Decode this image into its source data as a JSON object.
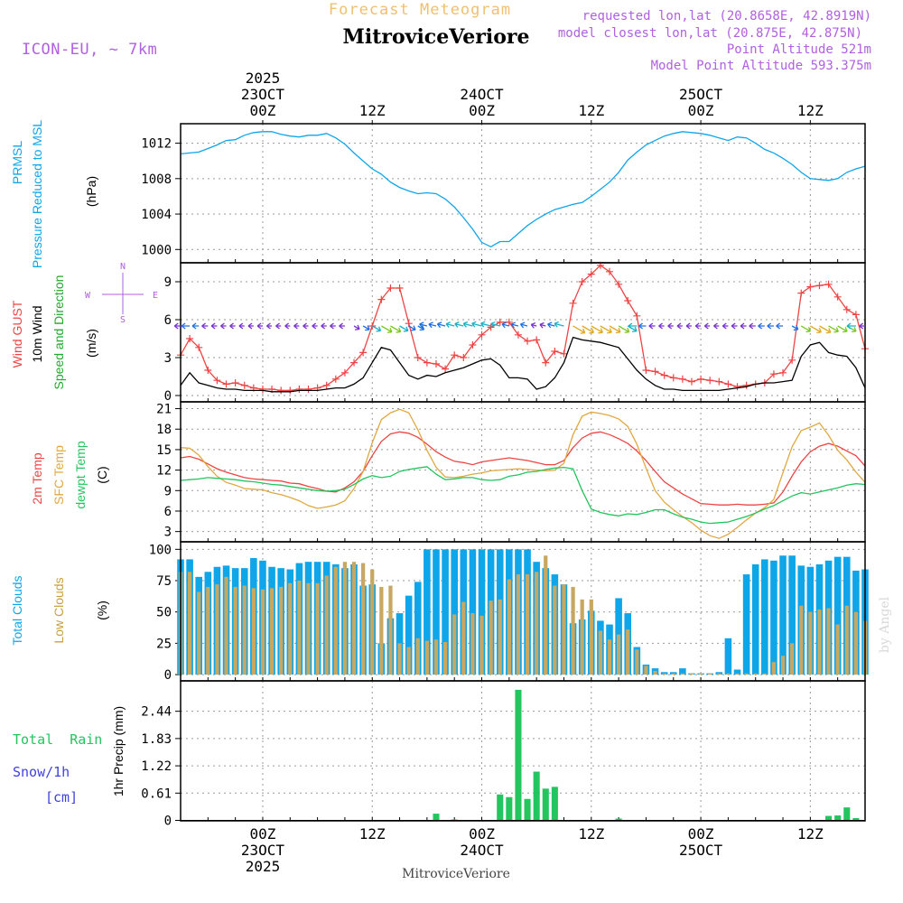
{
  "header": {
    "title_top": "Forecast Meteogram",
    "location": "MitroviceVeriore",
    "model": "ICON-EU, ~ 7km",
    "requested": "requested lon,lat (20.8658E, 42.8919N)",
    "closest": "model closest lon,lat (20.875E, 42.875N)",
    "point_altitude": "Point Altitude 521m",
    "model_altitude": "Model Point Altitude 593.375m"
  },
  "time_axis": {
    "top_labels": [
      {
        "t": 9,
        "lines": [
          "2025",
          "23OCT",
          "00Z"
        ]
      },
      {
        "t": 21,
        "lines": [
          "12Z"
        ]
      },
      {
        "t": 33,
        "lines": [
          "24OCT",
          "00Z"
        ]
      },
      {
        "t": 45,
        "lines": [
          "12Z"
        ]
      },
      {
        "t": 57,
        "lines": [
          "25OCT",
          "00Z"
        ]
      },
      {
        "t": 69,
        "lines": [
          "12Z"
        ]
      }
    ],
    "bottom_labels": [
      {
        "t": 9,
        "lines": [
          "00Z",
          "23OCT",
          "2025"
        ]
      },
      {
        "t": 21,
        "lines": [
          "12Z"
        ]
      },
      {
        "t": 33,
        "lines": [
          "00Z",
          "24OCT"
        ]
      },
      {
        "t": 45,
        "lines": [
          "12Z"
        ]
      },
      {
        "t": 57,
        "lines": [
          "00Z",
          "25OCT"
        ]
      },
      {
        "t": 69,
        "lines": [
          "12Z"
        ]
      }
    ],
    "footer": "MitroviceVeriore",
    "credit": "by Angel"
  },
  "chart_data": [
    {
      "type": "line",
      "panel": "pressure",
      "ylabel_lines": [
        "PRMSL",
        "Pressure Reduced to MSL"
      ],
      "unit": "(hPa)",
      "ylim": [
        998.5,
        1014.2
      ],
      "yticks": [
        "1000",
        "1004",
        "1008",
        "1012"
      ],
      "x_hours": [
        0,
        1,
        2,
        3,
        4,
        5,
        6,
        7,
        8,
        9,
        10,
        11,
        12,
        13,
        14,
        15,
        16,
        17,
        18,
        19,
        20,
        21,
        22,
        23,
        24,
        25,
        26,
        27,
        28,
        29,
        30,
        31,
        32,
        33,
        34,
        35,
        36,
        37,
        38,
        39,
        40,
        41,
        42,
        43,
        44,
        45,
        46,
        47,
        48,
        49,
        50,
        51,
        52,
        53,
        54,
        55,
        56,
        57,
        58,
        59,
        60,
        61,
        62,
        63,
        64,
        65,
        66,
        67,
        68,
        69,
        70,
        71,
        72,
        73,
        74,
        75
      ],
      "series": [
        {
          "name": "PRMSL",
          "color": "#0ea5e9",
          "values": [
            1010.8,
            1010.9,
            1011.0,
            1011.4,
            1011.8,
            1012.3,
            1012.4,
            1012.9,
            1013.2,
            1013.3,
            1013.3,
            1013.0,
            1012.8,
            1012.7,
            1012.9,
            1012.9,
            1013.1,
            1012.6,
            1011.9,
            1010.9,
            1010.0,
            1009.1,
            1008.5,
            1007.6,
            1007.0,
            1006.6,
            1006.3,
            1006.4,
            1006.3,
            1005.7,
            1004.8,
            1003.6,
            1002.3,
            1000.8,
            1000.3,
            1000.9,
            1000.9,
            1001.8,
            1002.7,
            1003.4,
            1004.0,
            1004.5,
            1004.8,
            1005.1,
            1005.3,
            1006.0,
            1006.8,
            1007.6,
            1008.7,
            1010.1,
            1011.0,
            1011.8,
            1012.3,
            1012.8,
            1013.1,
            1013.3,
            1013.2,
            1013.1,
            1012.9,
            1012.6,
            1012.3,
            1012.7,
            1012.6,
            1012.0,
            1011.3,
            1010.9,
            1010.3,
            1009.6,
            1008.7,
            1008.0,
            1007.9,
            1007.8,
            1008.0,
            1008.7,
            1009.1,
            1009.4
          ]
        }
      ]
    },
    {
      "type": "line",
      "panel": "wind",
      "ylabel_lines": [
        "Wind GUST",
        "10m Wind",
        "Speed and Direction"
      ],
      "unit": "(m/s)",
      "compass": {
        "n": "N",
        "s": "S",
        "w": "W",
        "e": "E"
      },
      "ylim": [
        -0.5,
        10.5
      ],
      "yticks": [
        "0",
        "3",
        "6",
        "9"
      ],
      "x_hours": [
        0,
        1,
        2,
        3,
        4,
        5,
        6,
        7,
        8,
        9,
        10,
        11,
        12,
        13,
        14,
        15,
        16,
        17,
        18,
        19,
        20,
        21,
        22,
        23,
        24,
        25,
        26,
        27,
        28,
        29,
        30,
        31,
        32,
        33,
        34,
        35,
        36,
        37,
        38,
        39,
        40,
        41,
        42,
        43,
        44,
        45,
        46,
        47,
        48,
        49,
        50,
        51,
        52,
        53,
        54,
        55,
        56,
        57,
        58,
        59,
        60,
        61,
        62,
        63,
        64,
        65,
        66,
        67,
        68,
        69,
        70,
        71,
        72,
        73,
        74,
        75
      ],
      "series": [
        {
          "name": "Wind GUST",
          "color": "#ef4444",
          "marker": "+",
          "values": [
            3.2,
            4.5,
            3.8,
            2.0,
            1.2,
            0.9,
            1.0,
            0.8,
            0.6,
            0.5,
            0.5,
            0.4,
            0.4,
            0.5,
            0.5,
            0.6,
            0.8,
            1.3,
            1.8,
            2.6,
            3.4,
            5.5,
            7.6,
            8.5,
            8.5,
            5.7,
            3.0,
            2.6,
            2.5,
            2.1,
            3.2,
            3.0,
            4.0,
            4.8,
            5.4,
            5.8,
            5.8,
            4.8,
            4.3,
            4.4,
            2.6,
            3.5,
            3.3,
            7.3,
            9.0,
            9.6,
            10.3,
            9.8,
            8.8,
            7.5,
            6.3,
            2.0,
            1.9,
            1.6,
            1.4,
            1.3,
            1.1,
            1.3,
            1.2,
            1.1,
            0.9,
            0.7,
            0.8,
            0.9,
            1.0,
            1.7,
            1.8,
            2.8,
            8.1,
            8.6,
            8.7,
            8.8,
            7.8,
            6.8,
            6.4,
            3.7
          ]
        },
        {
          "name": "10m Wind",
          "color": "#000000",
          "values": [
            0.8,
            1.8,
            1.0,
            0.8,
            0.6,
            0.5,
            0.5,
            0.4,
            0.4,
            0.4,
            0.3,
            0.3,
            0.3,
            0.4,
            0.4,
            0.4,
            0.5,
            0.6,
            0.6,
            0.9,
            1.4,
            2.6,
            3.8,
            3.6,
            2.6,
            1.6,
            1.3,
            1.6,
            1.5,
            1.8,
            2.0,
            2.2,
            2.5,
            2.8,
            2.9,
            2.4,
            1.4,
            1.4,
            1.3,
            0.5,
            0.7,
            1.4,
            2.6,
            4.6,
            4.4,
            4.3,
            4.2,
            4.0,
            3.8,
            2.9,
            2.0,
            1.3,
            0.8,
            0.5,
            0.5,
            0.4,
            0.4,
            0.4,
            0.4,
            0.4,
            0.5,
            0.6,
            0.7,
            0.9,
            1.0,
            1.0,
            1.1,
            1.2,
            3.1,
            4.0,
            4.2,
            3.4,
            3.2,
            3.1,
            2.2,
            0.6
          ]
        }
      ]
    },
    {
      "type": "line",
      "panel": "temperature",
      "ylabel_lines": [
        "2m Temp",
        "SFC Temp",
        "dewpt Temp"
      ],
      "unit": "(C)",
      "ylim": [
        1.5,
        22.0
      ],
      "yticks": [
        "3",
        "6",
        "9",
        "12",
        "15",
        "18",
        "21"
      ],
      "x_hours": [
        0,
        1,
        2,
        3,
        4,
        5,
        6,
        7,
        8,
        9,
        10,
        11,
        12,
        13,
        14,
        15,
        16,
        17,
        18,
        19,
        20,
        21,
        22,
        23,
        24,
        25,
        26,
        27,
        28,
        29,
        30,
        31,
        32,
        33,
        34,
        35,
        36,
        37,
        38,
        39,
        40,
        41,
        42,
        43,
        44,
        45,
        46,
        47,
        48,
        49,
        50,
        51,
        52,
        53,
        54,
        55,
        56,
        57,
        58,
        59,
        60,
        61,
        62,
        63,
        64,
        65,
        66,
        67,
        68,
        69,
        70,
        71,
        72,
        73,
        74,
        75
      ],
      "series": [
        {
          "name": "2m Temp",
          "color": "#ef4444",
          "values": [
            13.8,
            14.0,
            13.6,
            12.9,
            12.2,
            11.7,
            11.3,
            10.9,
            10.7,
            10.6,
            10.5,
            10.4,
            10.1,
            10.0,
            9.6,
            9.3,
            8.9,
            8.8,
            9.4,
            10.3,
            11.8,
            14.1,
            16.2,
            17.3,
            17.6,
            17.4,
            16.8,
            15.8,
            14.7,
            13.9,
            13.3,
            13.1,
            12.8,
            13.2,
            13.4,
            13.6,
            13.8,
            13.6,
            13.4,
            13.1,
            12.8,
            12.8,
            13.4,
            15.3,
            16.7,
            17.4,
            17.6,
            17.2,
            16.6,
            15.9,
            14.8,
            13.4,
            11.8,
            10.3,
            9.4,
            8.5,
            7.8,
            7.1,
            7.0,
            6.9,
            6.9,
            7.0,
            6.9,
            6.9,
            7.0,
            7.2,
            8.8,
            11.1,
            13.2,
            14.7,
            15.5,
            15.9,
            15.5,
            14.8,
            14.1,
            12.6
          ]
        },
        {
          "name": "SFC Temp",
          "color": "#e0a840",
          "values": [
            15.3,
            15.2,
            14.2,
            12.5,
            11.1,
            10.2,
            9.8,
            9.3,
            9.2,
            9.1,
            8.7,
            8.4,
            8.0,
            7.5,
            6.8,
            6.4,
            6.6,
            6.9,
            7.5,
            9.3,
            11.8,
            16.0,
            19.4,
            20.4,
            20.9,
            20.4,
            17.9,
            14.9,
            12.4,
            11.0,
            10.9,
            11.1,
            11.4,
            11.6,
            11.9,
            12.0,
            12.1,
            12.2,
            12.1,
            12.0,
            11.9,
            12.0,
            13.0,
            17.2,
            19.9,
            20.5,
            20.3,
            20.0,
            19.5,
            18.4,
            15.8,
            12.3,
            9.0,
            7.3,
            6.2,
            5.2,
            4.3,
            3.2,
            2.4,
            2.0,
            2.6,
            3.6,
            4.7,
            5.7,
            6.5,
            7.7,
            11.6,
            15.4,
            17.8,
            18.3,
            18.9,
            17.1,
            14.9,
            13.5,
            11.7,
            10.2
          ]
        },
        {
          "name": "dewpt Temp",
          "color": "#22c55e",
          "values": [
            10.5,
            10.6,
            10.7,
            10.9,
            10.8,
            10.7,
            10.6,
            10.4,
            10.3,
            10.1,
            9.9,
            9.8,
            9.6,
            9.4,
            9.2,
            9.0,
            8.9,
            9.0,
            9.2,
            9.9,
            10.7,
            11.2,
            10.9,
            11.1,
            11.8,
            12.1,
            12.3,
            12.5,
            11.4,
            10.6,
            10.7,
            10.9,
            10.9,
            10.6,
            10.5,
            10.6,
            11.1,
            11.3,
            11.7,
            11.8,
            12.1,
            12.3,
            12.4,
            12.2,
            9.0,
            6.3,
            5.8,
            5.5,
            5.3,
            5.6,
            5.5,
            5.8,
            6.2,
            6.2,
            5.6,
            5.1,
            4.8,
            4.4,
            4.2,
            4.3,
            4.4,
            4.8,
            5.2,
            5.7,
            6.3,
            6.8,
            7.5,
            8.2,
            8.7,
            8.5,
            8.8,
            9.1,
            9.4,
            9.8,
            10.0,
            9.9
          ]
        }
      ]
    },
    {
      "type": "bar",
      "panel": "clouds",
      "ylabel_lines": [
        "Total Clouds",
        "Low Clouds"
      ],
      "unit": "(%)",
      "ylim": [
        -5,
        106
      ],
      "yticks": [
        "0",
        "25",
        "50",
        "75",
        "100"
      ],
      "x_hours": [
        0,
        1,
        2,
        3,
        4,
        5,
        6,
        7,
        8,
        9,
        10,
        11,
        12,
        13,
        14,
        15,
        16,
        17,
        18,
        19,
        20,
        21,
        22,
        23,
        24,
        25,
        26,
        27,
        28,
        29,
        30,
        31,
        32,
        33,
        34,
        35,
        36,
        37,
        38,
        39,
        40,
        41,
        42,
        43,
        44,
        45,
        46,
        47,
        48,
        49,
        50,
        51,
        52,
        53,
        54,
        55,
        56,
        57,
        58,
        59,
        60,
        61,
        62,
        63,
        64,
        65,
        66,
        67,
        68,
        69,
        70,
        71,
        72,
        73,
        74,
        75
      ],
      "series": [
        {
          "name": "Total Clouds",
          "color": "#0ea5e9",
          "values": [
            92,
            92,
            78,
            82,
            86,
            87,
            85,
            85,
            93,
            91,
            86,
            85,
            84,
            89,
            90,
            90,
            90,
            88,
            85,
            88,
            71,
            72,
            25,
            45,
            49,
            63,
            74,
            100,
            100,
            100,
            100,
            100,
            100,
            100,
            100,
            100,
            100,
            100,
            100,
            90,
            85,
            80,
            72,
            41,
            44,
            51,
            43,
            40,
            61,
            49,
            22,
            8,
            5,
            2,
            2,
            5,
            1,
            1,
            1,
            2,
            29,
            4,
            80,
            88,
            92,
            91,
            95,
            95,
            87,
            86,
            88,
            91,
            94,
            94,
            83,
            84
          ]
        },
        {
          "name": "Low Clouds",
          "color": "#c8a860",
          "values": [
            82,
            82,
            66,
            70,
            72,
            78,
            70,
            71,
            69,
            68,
            69,
            70,
            73,
            75,
            73,
            73,
            79,
            86,
            90,
            90,
            89,
            84,
            70,
            71,
            25,
            22,
            29,
            27,
            28,
            26,
            48,
            58,
            49,
            47,
            59,
            60,
            76,
            80,
            80,
            82,
            95,
            71,
            72,
            70,
            60,
            60,
            35,
            28,
            32,
            36,
            20,
            7,
            3,
            1,
            1,
            1,
            1,
            1,
            1,
            1,
            1,
            1,
            1,
            1,
            1,
            10,
            15,
            25,
            55,
            50,
            52,
            53,
            40,
            55,
            50,
            43
          ]
        }
      ]
    },
    {
      "type": "bar",
      "panel": "precipitation",
      "ylabel_lines": [
        "Total  Rain",
        "Snow/1h",
        "[cm]"
      ],
      "unit": "1hr Precip (mm)",
      "ylim": [
        -0.01,
        3.12
      ],
      "yticks": [
        "0",
        "0.61",
        "1.22",
        "1.83",
        "2.44"
      ],
      "x_hours": [
        28,
        30,
        35,
        36,
        37,
        38,
        39,
        40,
        41,
        48,
        71,
        72,
        73,
        74
      ],
      "series": [
        {
          "name": "Total Rain",
          "color": "#22c55e",
          "values": [
            0.15,
            0.02,
            0.58,
            0.52,
            2.92,
            0.48,
            1.09,
            0.71,
            0.75,
            0.04,
            0.1,
            0.11,
            0.29,
            0.05
          ]
        }
      ]
    }
  ]
}
